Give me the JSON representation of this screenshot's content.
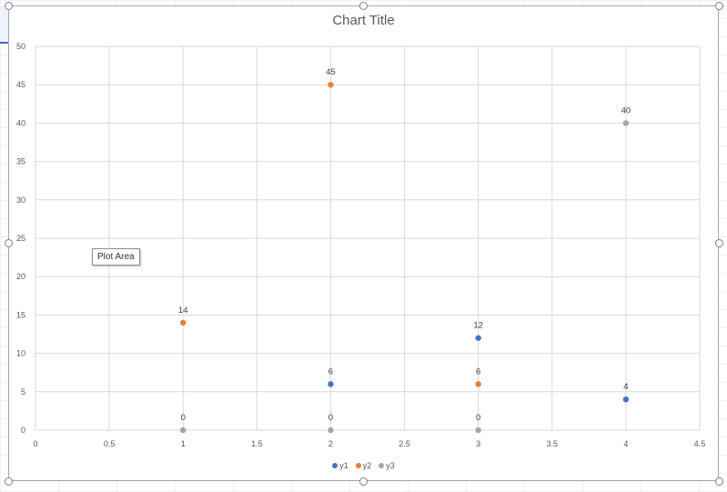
{
  "chart_data": {
    "type": "scatter",
    "title": "Chart Title",
    "xlabel": "",
    "ylabel": "",
    "xlim": [
      0,
      4.5
    ],
    "ylim": [
      0,
      50
    ],
    "x_ticks": [
      "0",
      "0.5",
      "1",
      "1.5",
      "2",
      "2.5",
      "3",
      "3.5",
      "4",
      "4.5"
    ],
    "y_ticks": [
      "0",
      "5",
      "10",
      "15",
      "20",
      "25",
      "30",
      "35",
      "40",
      "45",
      "50"
    ],
    "grid": true,
    "legend_position": "bottom",
    "data_labels": true,
    "series": [
      {
        "name": "y1",
        "color": "#4472c4",
        "points": [
          [
            2,
            6
          ],
          [
            3,
            12
          ],
          [
            4,
            4
          ]
        ]
      },
      {
        "name": "y2",
        "color": "#ed7d31",
        "points": [
          [
            1,
            14
          ],
          [
            2,
            45
          ],
          [
            3,
            6
          ]
        ]
      },
      {
        "name": "y3",
        "color": "#a5a5a5",
        "points": [
          [
            1,
            0
          ],
          [
            2,
            0
          ],
          [
            3,
            0
          ],
          [
            4,
            40
          ]
        ]
      }
    ]
  },
  "tooltip": {
    "text": "Plot Area"
  }
}
